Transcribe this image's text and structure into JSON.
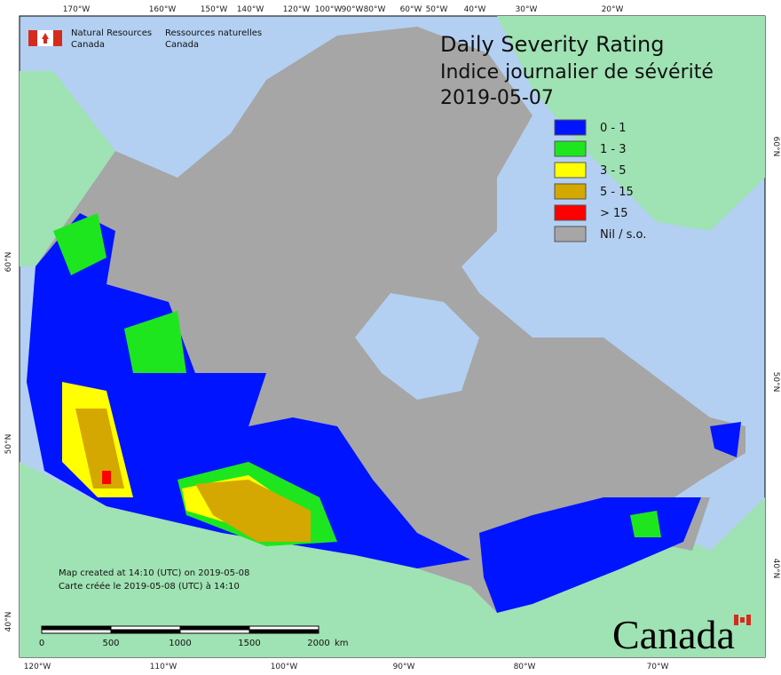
{
  "header": {
    "title": "Daily Severity Rating",
    "subtitle": "Indice journalier de sévérité",
    "date": "2019-05-07"
  },
  "agency": {
    "en_line1": "Natural Resources",
    "en_line2": "Canada",
    "fr_line1": "Ressources naturelles",
    "fr_line2": "Canada"
  },
  "legend": {
    "items": [
      {
        "label": "0 - 1",
        "color": "#0014ff"
      },
      {
        "label": "1 - 3",
        "color": "#1ee61e"
      },
      {
        "label": "3 - 5",
        "color": "#ffff00"
      },
      {
        "label": "5 - 15",
        "color": "#d4a800"
      },
      {
        "label": "> 15",
        "color": "#ff0000"
      },
      {
        "label": "Nil / s.o.",
        "color": "#a6a6a6"
      }
    ]
  },
  "graticule": {
    "top": [
      "170°W",
      "160°W",
      "150°W",
      "140°W",
      "120°W",
      "100°W",
      "90°W",
      "80°W",
      "60°W",
      "50°W",
      "40°W",
      "30°W",
      "20°W"
    ],
    "bottom": [
      "120°W",
      "110°W",
      "100°W",
      "90°W",
      "80°W",
      "70°W"
    ],
    "left": [
      "60°N",
      "50°N",
      "40°N"
    ],
    "right": [
      "60°N",
      "50°N",
      "40°N"
    ]
  },
  "notes": {
    "en": "Map created at 14:10 (UTC) on 2019-05-08",
    "fr": "Carte créée le 2019-05-08 (UTC) à 14:10"
  },
  "scale_bar": {
    "labels": [
      "0",
      "500",
      "1000",
      "1500",
      "2000"
    ],
    "unit": "km"
  },
  "wordmark": "Canada"
}
